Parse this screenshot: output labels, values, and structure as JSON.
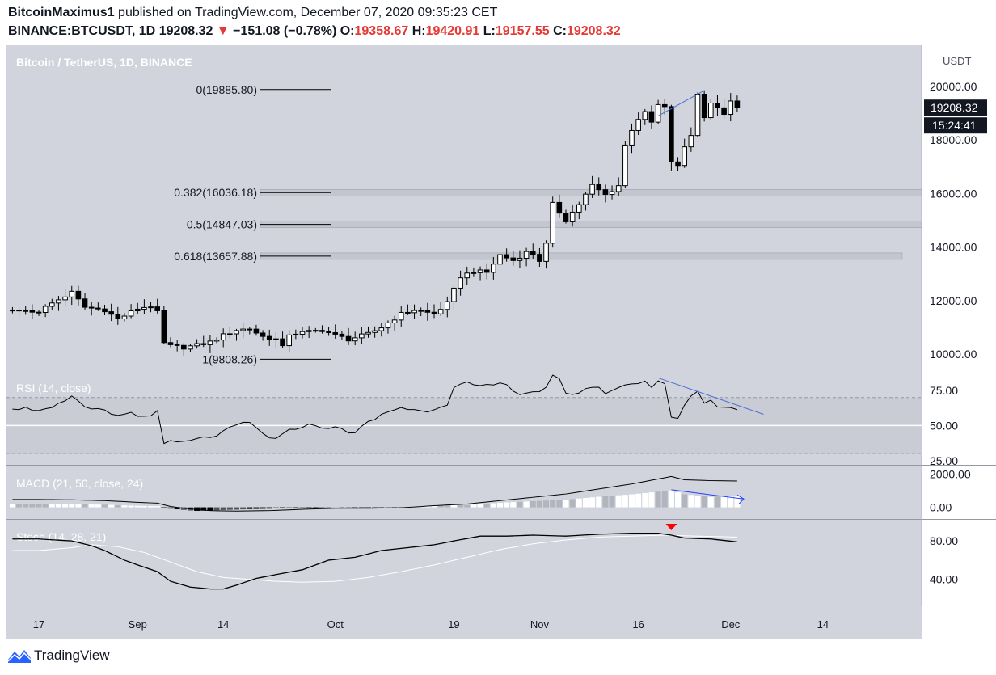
{
  "header": {
    "author": "BitcoinMaximus1",
    "published_text": "published on TradingView.com, December 07, 2020 09:35:23 CET",
    "symbol": "BINANCE:BTCUSDT, 1D",
    "last": "19208.32",
    "change_arrow": "▼",
    "change": "−151.08 (−0.78%)",
    "o_label": "O:",
    "o": "19358.67",
    "h_label": "H:",
    "h": "19420.91",
    "l_label": "L:",
    "l": "19157.55",
    "c_label": "C:",
    "c": "19208.32"
  },
  "footer": {
    "brand": "TradingView",
    "logo_icon": "tradingview-logo-icon"
  },
  "colors": {
    "panel_bg": "#d1d4dc",
    "axis_bg": "#ffffff",
    "text": "#131722",
    "red": "#e53935",
    "trend": "#4a6fd8"
  },
  "chart_data": [
    {
      "type": "candlestick",
      "title": "Bitcoin / TetherUS, 1D, BINANCE",
      "currency_label": "USDT",
      "y_ticks": [
        "20000.00",
        "18000.00",
        "16000.00",
        "14000.00",
        "12000.00",
        "10000.00"
      ],
      "ylim": [
        9300,
        21100
      ],
      "last_price_label": "19208.32",
      "countdown_label": "15:24:41",
      "x_ticks": [
        {
          "day": 0,
          "label": "17"
        },
        {
          "day": 15,
          "label": "Sep"
        },
        {
          "day": 28,
          "label": "14"
        },
        {
          "day": 45,
          "label": "Oct"
        },
        {
          "day": 63,
          "label": "19"
        },
        {
          "day": 76,
          "label": "Nov"
        },
        {
          "day": 91,
          "label": "16"
        },
        {
          "day": 105,
          "label": "Dec"
        },
        {
          "day": 119,
          "label": "14"
        }
      ],
      "close_anchors": [
        [
          0,
          11600
        ],
        [
          2,
          11900
        ],
        [
          5,
          12300
        ],
        [
          7,
          11750
        ],
        [
          10,
          11650
        ],
        [
          12,
          11300
        ],
        [
          15,
          11700
        ],
        [
          17,
          11800
        ],
        [
          18,
          11550
        ],
        [
          19,
          10400
        ],
        [
          20,
          10300
        ],
        [
          22,
          10250
        ],
        [
          24,
          10330
        ],
        [
          26,
          10450
        ],
        [
          28,
          10700
        ],
        [
          30,
          10900
        ],
        [
          32,
          10950
        ],
        [
          34,
          10650
        ],
        [
          36,
          10550
        ],
        [
          37,
          10250
        ],
        [
          38,
          10750
        ],
        [
          40,
          10800
        ],
        [
          43,
          10900
        ],
        [
          45,
          10700
        ],
        [
          47,
          10550
        ],
        [
          50,
          10750
        ],
        [
          52,
          11000
        ],
        [
          55,
          11500
        ],
        [
          57,
          11650
        ],
        [
          60,
          11500
        ],
        [
          62,
          11900
        ],
        [
          64,
          12900
        ],
        [
          66,
          13100
        ],
        [
          68,
          13050
        ],
        [
          70,
          13700
        ],
        [
          72,
          13500
        ],
        [
          74,
          13800
        ],
        [
          75,
          13750
        ],
        [
          76,
          13500
        ],
        [
          77,
          14100
        ],
        [
          78,
          15600
        ],
        [
          79,
          15300
        ],
        [
          80,
          15000
        ],
        [
          82,
          15600
        ],
        [
          84,
          16300
        ],
        [
          86,
          15950
        ],
        [
          88,
          16300
        ],
        [
          89,
          17800
        ],
        [
          90,
          18400
        ],
        [
          91,
          18800
        ],
        [
          92,
          19000
        ],
        [
          93,
          18650
        ],
        [
          94,
          19300
        ],
        [
          95,
          19200
        ],
        [
          96,
          17200
        ],
        [
          97,
          17000
        ],
        [
          98,
          17750
        ],
        [
          99,
          18200
        ],
        [
          100,
          19700
        ],
        [
          101,
          18900
        ],
        [
          102,
          19400
        ],
        [
          103,
          19150
        ],
        [
          104,
          19000
        ],
        [
          105,
          19400
        ],
        [
          106,
          19208
        ]
      ],
      "fibonacci": [
        {
          "label": "0(19885.80)",
          "price": 19885.8,
          "band": false
        },
        {
          "label": "0.382(16036.18)",
          "price": 16036.18,
          "band": true
        },
        {
          "label": "0.5(14847.03)",
          "price": 14847.03,
          "band": true
        },
        {
          "label": "0.618(13657.88)",
          "price": 13657.88,
          "band": true
        },
        {
          "label": "1(9808.26)",
          "price": 9808.26,
          "band": false
        }
      ],
      "trendline": [
        [
          94,
          18900
        ],
        [
          101,
          19850
        ]
      ]
    },
    {
      "type": "line",
      "title": "RSI (14, close)",
      "y_ticks": [
        "75.00",
        "50.00",
        "25.00"
      ],
      "ylim": [
        22,
        90
      ],
      "anchors": [
        [
          0,
          62
        ],
        [
          3,
          65
        ],
        [
          5,
          72
        ],
        [
          7,
          62
        ],
        [
          10,
          60
        ],
        [
          12,
          56
        ],
        [
          14,
          60
        ],
        [
          15,
          56
        ],
        [
          17,
          57
        ],
        [
          18,
          62
        ],
        [
          19,
          36
        ],
        [
          20,
          38
        ],
        [
          22,
          38
        ],
        [
          24,
          40
        ],
        [
          26,
          42
        ],
        [
          28,
          45
        ],
        [
          30,
          50
        ],
        [
          32,
          52
        ],
        [
          34,
          44
        ],
        [
          36,
          40
        ],
        [
          38,
          46
        ],
        [
          40,
          50
        ],
        [
          42,
          50
        ],
        [
          45,
          48
        ],
        [
          48,
          45
        ],
        [
          50,
          52
        ],
        [
          53,
          60
        ],
        [
          55,
          63
        ],
        [
          58,
          60
        ],
        [
          60,
          62
        ],
        [
          62,
          66
        ],
        [
          63,
          78
        ],
        [
          65,
          80
        ],
        [
          67,
          77
        ],
        [
          70,
          80
        ],
        [
          72,
          76
        ],
        [
          73,
          73
        ],
        [
          75,
          74
        ],
        [
          77,
          76
        ],
        [
          78,
          85
        ],
        [
          79,
          82
        ],
        [
          80,
          72
        ],
        [
          82,
          74
        ],
        [
          84,
          78
        ],
        [
          86,
          74
        ],
        [
          88,
          76
        ],
        [
          89,
          80
        ],
        [
          91,
          80
        ],
        [
          92,
          81
        ],
        [
          93,
          78
        ],
        [
          94,
          83
        ],
        [
          95,
          80
        ],
        [
          96,
          56
        ],
        [
          97,
          56
        ],
        [
          98,
          64
        ],
        [
          99,
          70
        ],
        [
          100,
          74
        ],
        [
          101,
          66
        ],
        [
          102,
          68
        ],
        [
          103,
          62
        ],
        [
          104,
          64
        ],
        [
          105,
          63
        ],
        [
          106,
          62
        ]
      ],
      "levels": [
        70,
        50,
        30
      ],
      "trendline": [
        [
          94,
          84
        ],
        [
          110,
          58
        ]
      ]
    },
    {
      "type": "bar",
      "title": "MACD (21, 50, close, 24)",
      "y_ticks": [
        "2000.00",
        "0.00"
      ],
      "ylim": [
        -700,
        2500
      ],
      "macd_anchors": [
        [
          0,
          470
        ],
        [
          5,
          450
        ],
        [
          10,
          400
        ],
        [
          15,
          300
        ],
        [
          18,
          250
        ],
        [
          20,
          50
        ],
        [
          23,
          -100
        ],
        [
          26,
          -200
        ],
        [
          30,
          -230
        ],
        [
          35,
          -200
        ],
        [
          40,
          -120
        ],
        [
          45,
          -60
        ],
        [
          50,
          -60
        ],
        [
          55,
          -30
        ],
        [
          60,
          100
        ],
        [
          65,
          200
        ],
        [
          70,
          400
        ],
        [
          75,
          600
        ],
        [
          80,
          800
        ],
        [
          85,
          1100
        ],
        [
          90,
          1400
        ],
        [
          94,
          1700
        ],
        [
          96,
          1850
        ],
        [
          98,
          1650
        ],
        [
          102,
          1600
        ],
        [
          106,
          1580
        ]
      ],
      "trendline": [
        [
          96,
          1050
        ],
        [
          107,
          500
        ]
      ]
    },
    {
      "type": "line",
      "title": "Stoch (14, 28, 21)",
      "y_ticks": [
        "80.00",
        "40.00"
      ],
      "ylim": [
        12,
        102
      ],
      "k_anchors": [
        [
          0,
          82
        ],
        [
          5,
          80
        ],
        [
          8,
          75
        ],
        [
          10,
          70
        ],
        [
          13,
          60
        ],
        [
          15,
          55
        ],
        [
          18,
          48
        ],
        [
          20,
          38
        ],
        [
          23,
          32
        ],
        [
          26,
          30
        ],
        [
          28,
          30
        ],
        [
          30,
          34
        ],
        [
          33,
          41
        ],
        [
          36,
          45
        ],
        [
          40,
          50
        ],
        [
          44,
          60
        ],
        [
          48,
          63
        ],
        [
          52,
          70
        ],
        [
          56,
          73
        ],
        [
          60,
          76
        ],
        [
          63,
          80
        ],
        [
          67,
          85
        ],
        [
          71,
          85
        ],
        [
          75,
          86
        ],
        [
          80,
          85
        ],
        [
          85,
          87
        ],
        [
          90,
          88
        ],
        [
          94,
          88
        ],
        [
          96,
          86
        ],
        [
          98,
          83
        ],
        [
          102,
          82
        ],
        [
          106,
          79
        ]
      ],
      "d_anchors": [
        [
          0,
          70
        ],
        [
          5,
          73
        ],
        [
          8,
          76
        ],
        [
          12,
          74
        ],
        [
          16,
          68
        ],
        [
          20,
          58
        ],
        [
          24,
          48
        ],
        [
          28,
          42
        ],
        [
          32,
          40
        ],
        [
          36,
          38
        ],
        [
          40,
          37
        ],
        [
          45,
          38
        ],
        [
          50,
          42
        ],
        [
          55,
          48
        ],
        [
          60,
          55
        ],
        [
          65,
          63
        ],
        [
          70,
          71
        ],
        [
          75,
          77
        ],
        [
          80,
          81
        ],
        [
          85,
          84
        ],
        [
          90,
          85
        ],
        [
          95,
          86
        ],
        [
          100,
          85
        ],
        [
          106,
          84
        ]
      ],
      "signal_marker_day": 96
    }
  ]
}
